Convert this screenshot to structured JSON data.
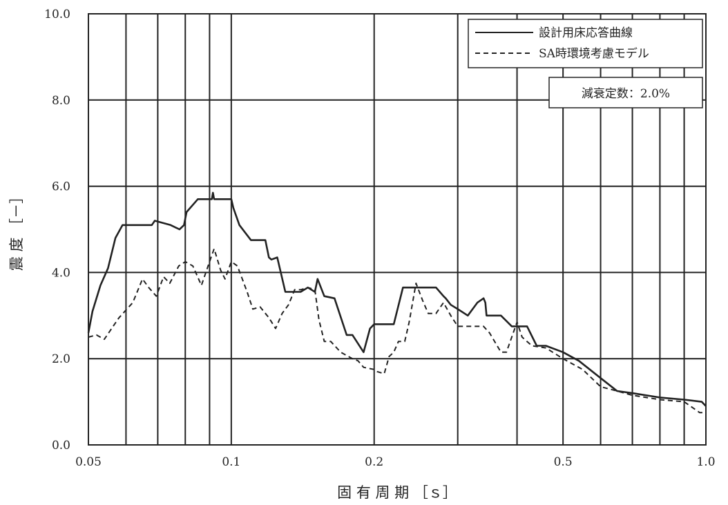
{
  "chart_data": {
    "type": "line",
    "title": "",
    "xlabel": "固 有 周 期 ［ｓ］",
    "ylabel": "震 度 ［－］",
    "x_scale": "log",
    "xlim": [
      0.05,
      1.0
    ],
    "ylim": [
      0.0,
      10.0
    ],
    "x_tick_labels": [
      "0.05",
      "0.1",
      "0.2",
      "0.5",
      "1.0"
    ],
    "x_ticks": [
      0.05,
      0.1,
      0.2,
      0.5,
      1.0
    ],
    "x_gridlines": [
      0.05,
      0.06,
      0.07,
      0.08,
      0.09,
      0.1,
      0.2,
      0.3,
      0.4,
      0.5,
      0.6,
      0.7,
      0.8,
      0.9,
      1.0
    ],
    "y_ticks": [
      0.0,
      2.0,
      4.0,
      6.0,
      8.0,
      10.0
    ],
    "y_tick_labels": [
      "0.0",
      "2.0",
      "4.0",
      "6.0",
      "8.0",
      "10.0"
    ],
    "grid": true,
    "legend_position": "top-right",
    "annotation": "減衰定数：2.0%",
    "series": [
      {
        "name": "設計用床応答曲線",
        "style": "solid",
        "x": [
          0.05,
          0.051,
          0.053,
          0.055,
          0.057,
          0.059,
          0.0615,
          0.068,
          0.069,
          0.0745,
          0.0778,
          0.0795,
          0.0805,
          0.085,
          0.09,
          0.091,
          0.0915,
          0.092,
          0.095,
          0.1,
          0.101,
          0.104,
          0.11,
          0.118,
          0.12,
          0.1215,
          0.125,
          0.13,
          0.135,
          0.14,
          0.145,
          0.15,
          0.152,
          0.157,
          0.165,
          0.175,
          0.18,
          0.19,
          0.196,
          0.2,
          0.21,
          0.22,
          0.23,
          0.235,
          0.25,
          0.27,
          0.28,
          0.283,
          0.29,
          0.3,
          0.315,
          0.33,
          0.34,
          0.343,
          0.345,
          0.35,
          0.37,
          0.39,
          0.395,
          0.405,
          0.42,
          0.44,
          0.46,
          0.5,
          0.54,
          0.6,
          0.65,
          0.7,
          0.8,
          0.9,
          0.98,
          1.0
        ],
        "y": [
          2.6,
          3.1,
          3.7,
          4.1,
          4.8,
          5.1,
          5.1,
          5.1,
          5.2,
          5.1,
          5.0,
          5.1,
          5.4,
          5.7,
          5.7,
          5.7,
          5.85,
          5.7,
          5.7,
          5.7,
          5.5,
          5.1,
          4.75,
          4.75,
          4.35,
          4.3,
          4.35,
          3.55,
          3.55,
          3.55,
          3.65,
          3.55,
          3.85,
          3.45,
          3.4,
          2.55,
          2.55,
          2.15,
          2.7,
          2.8,
          2.8,
          2.8,
          3.65,
          3.65,
          3.65,
          3.65,
          3.45,
          3.4,
          3.25,
          3.15,
          3.0,
          3.3,
          3.4,
          3.3,
          3.0,
          3.0,
          3.0,
          2.75,
          2.75,
          2.75,
          2.75,
          2.3,
          2.3,
          2.15,
          1.95,
          1.55,
          1.25,
          1.2,
          1.1,
          1.05,
          1.0,
          0.9
        ]
      },
      {
        "name": "SA時環境考慮モデル",
        "style": "dashed",
        "x": [
          0.05,
          0.052,
          0.054,
          0.058,
          0.062,
          0.065,
          0.067,
          0.0695,
          0.072,
          0.0742,
          0.0775,
          0.08,
          0.083,
          0.0865,
          0.09,
          0.092,
          0.095,
          0.097,
          0.1,
          0.103,
          0.108,
          0.111,
          0.115,
          0.12,
          0.124,
          0.128,
          0.132,
          0.136,
          0.14,
          0.145,
          0.15,
          0.153,
          0.157,
          0.162,
          0.17,
          0.18,
          0.185,
          0.19,
          0.2,
          0.203,
          0.21,
          0.215,
          0.22,
          0.225,
          0.232,
          0.237,
          0.245,
          0.253,
          0.26,
          0.27,
          0.28,
          0.29,
          0.3,
          0.315,
          0.33,
          0.34,
          0.35,
          0.37,
          0.38,
          0.4,
          0.41,
          0.43,
          0.46,
          0.5,
          0.55,
          0.6,
          0.65,
          0.7,
          0.8,
          0.9,
          0.97,
          1.0
        ],
        "y": [
          2.5,
          2.55,
          2.45,
          2.95,
          3.3,
          3.85,
          3.65,
          3.45,
          3.9,
          3.75,
          4.15,
          4.25,
          4.15,
          3.7,
          4.25,
          4.55,
          4.05,
          3.85,
          4.25,
          4.15,
          3.55,
          3.15,
          3.2,
          2.95,
          2.7,
          3.05,
          3.25,
          3.6,
          3.6,
          3.65,
          3.6,
          2.9,
          2.4,
          2.4,
          2.15,
          2.0,
          1.95,
          1.8,
          1.75,
          1.7,
          1.65,
          2.05,
          2.15,
          2.4,
          2.4,
          2.85,
          3.75,
          3.35,
          3.05,
          3.05,
          3.3,
          3.0,
          2.75,
          2.75,
          2.75,
          2.75,
          2.6,
          2.15,
          2.15,
          2.85,
          2.5,
          2.3,
          2.25,
          2.0,
          1.75,
          1.35,
          1.25,
          1.15,
          1.05,
          1.0,
          0.75,
          0.75
        ]
      }
    ]
  }
}
